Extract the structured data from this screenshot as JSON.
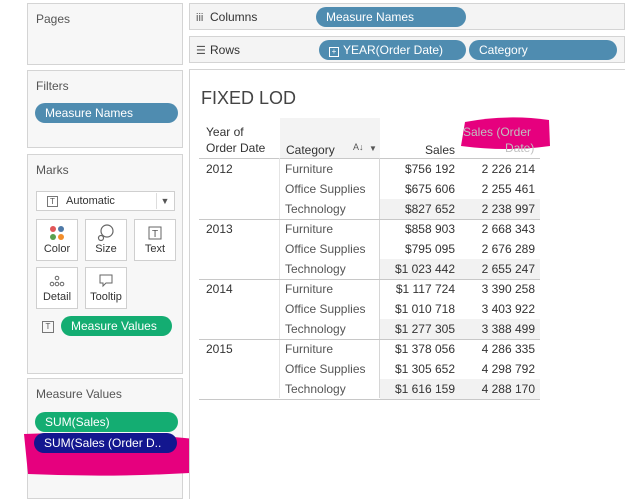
{
  "left_panel": {
    "pages_title": "Pages",
    "filters_title": "Filters",
    "filter_pill": "Measure Names",
    "marks_title": "Marks",
    "mark_type": "Automatic",
    "buttons": {
      "color": "Color",
      "size": "Size",
      "text": "Text",
      "detail": "Detail",
      "tooltip": "Tooltip"
    },
    "marks_field": "Measure Values",
    "measure_values_title": "Measure Values",
    "measures": [
      "SUM(Sales)",
      "SUM(Sales (Order D.."
    ]
  },
  "shelves": {
    "columns_label": "Columns",
    "columns_pill": "Measure Names",
    "rows_label": "Rows",
    "rows_pills": [
      "YEAR(Order Date)",
      "Category"
    ]
  },
  "viz": {
    "title": "FIXED LOD",
    "headers": {
      "year": [
        "Year of",
        "Order Date"
      ],
      "category": "Category",
      "sales": "Sales",
      "sales_order": [
        "Sales (Order",
        "Date)"
      ]
    },
    "groups": [
      {
        "year": "2012",
        "rows": [
          {
            "category": "Furniture",
            "sales": "$756 192",
            "sales_order": "2 226 214"
          },
          {
            "category": "Office Supplies",
            "sales": "$675 606",
            "sales_order": "2 255 461"
          },
          {
            "category": "Technology",
            "sales": "$827 652",
            "sales_order": "2 238 997"
          }
        ]
      },
      {
        "year": "2013",
        "rows": [
          {
            "category": "Furniture",
            "sales": "$858 903",
            "sales_order": "2 668 343"
          },
          {
            "category": "Office Supplies",
            "sales": "$795 095",
            "sales_order": "2 676 289"
          },
          {
            "category": "Technology",
            "sales": "$1 023 442",
            "sales_order": "2 655 247"
          }
        ]
      },
      {
        "year": "2014",
        "rows": [
          {
            "category": "Furniture",
            "sales": "$1 117 724",
            "sales_order": "3 390 258"
          },
          {
            "category": "Office Supplies",
            "sales": "$1 010 718",
            "sales_order": "3 403 922"
          },
          {
            "category": "Technology",
            "sales": "$1 277 305",
            "sales_order": "3 388 499"
          }
        ]
      },
      {
        "year": "2015",
        "rows": [
          {
            "category": "Furniture",
            "sales": "$1 378 056",
            "sales_order": "4 286 335"
          },
          {
            "category": "Office Supplies",
            "sales": "$1 305 652",
            "sales_order": "4 298 792"
          },
          {
            "category": "Technology",
            "sales": "$1 616 159",
            "sales_order": "4 288 170"
          }
        ]
      }
    ]
  },
  "colors": {
    "highlight": "#e6007e",
    "pill_blue": "#4f8cb0",
    "pill_green": "#14ad72",
    "pill_navy": "#13168f"
  }
}
